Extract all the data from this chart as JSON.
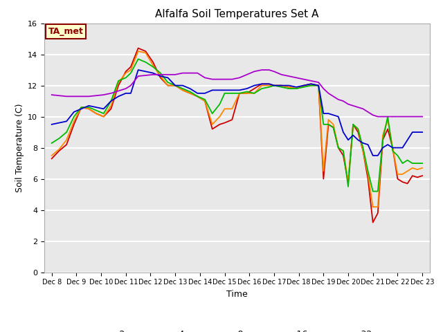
{
  "title": "Alfalfa Soil Temperatures Set A",
  "xlabel": "Time",
  "ylabel": "Soil Temperature (C)",
  "ylim": [
    0,
    16
  ],
  "yticks": [
    0,
    2,
    4,
    6,
    8,
    10,
    12,
    14,
    16
  ],
  "background_color": "#e8e8e8",
  "annotation_text": "TA_met",
  "annotation_bg": "#ffffcc",
  "annotation_border": "#8B0000",
  "x_labels": [
    "Dec 8",
    "Dec 9",
    "Dec 10",
    "Dec 11",
    "Dec 12",
    "Dec 13",
    "Dec 14",
    "Dec 15",
    "Dec 16",
    "Dec 17",
    "Dec 18",
    "Dec 19",
    "Dec 20",
    "Dec 21",
    "Dec 22",
    "Dec 23"
  ],
  "series": {
    "-2cm": {
      "color": "#cc0000",
      "lw": 1.3,
      "data_x": [
        0,
        0.3,
        0.6,
        0.9,
        1.2,
        1.5,
        1.8,
        2.1,
        2.4,
        2.7,
        3.0,
        3.2,
        3.5,
        3.8,
        4.1,
        4.4,
        4.7,
        5.0,
        5.3,
        5.6,
        5.9,
        6.2,
        6.5,
        6.8,
        7.0,
        7.3,
        7.6,
        7.9,
        8.2,
        8.5,
        8.8,
        9.0,
        9.3,
        9.6,
        9.9,
        10.2,
        10.5,
        10.8,
        11.0,
        11.2,
        11.4,
        11.6,
        11.8,
        12.0,
        12.2,
        12.4,
        12.6,
        12.8,
        13.0,
        13.2,
        13.4,
        13.6,
        13.8,
        14.0,
        14.2,
        14.4,
        14.6,
        14.8,
        15.0
      ],
      "data_y": [
        7.3,
        7.8,
        8.2,
        9.5,
        10.6,
        10.5,
        10.2,
        10.0,
        10.5,
        12.0,
        12.9,
        13.2,
        14.4,
        14.2,
        13.5,
        12.5,
        12.0,
        12.0,
        11.7,
        11.5,
        11.3,
        11.0,
        9.2,
        9.5,
        9.6,
        9.8,
        11.5,
        11.5,
        11.8,
        12.1,
        12.1,
        12.0,
        12.0,
        11.9,
        11.8,
        12.0,
        12.1,
        12.0,
        6.0,
        9.5,
        9.3,
        8.0,
        7.5,
        5.8,
        9.5,
        9.0,
        7.8,
        6.0,
        3.2,
        3.8,
        8.5,
        9.2,
        8.0,
        6.0,
        5.8,
        5.7,
        6.2,
        6.1,
        6.2
      ]
    },
    "-4cm": {
      "color": "#ff8800",
      "lw": 1.3,
      "data_x": [
        0,
        0.3,
        0.6,
        0.9,
        1.2,
        1.5,
        1.8,
        2.1,
        2.4,
        2.7,
        3.0,
        3.2,
        3.5,
        3.8,
        4.1,
        4.4,
        4.7,
        5.0,
        5.3,
        5.6,
        5.9,
        6.2,
        6.5,
        6.8,
        7.0,
        7.3,
        7.6,
        7.9,
        8.2,
        8.5,
        8.8,
        9.0,
        9.3,
        9.6,
        9.9,
        10.2,
        10.5,
        10.8,
        11.0,
        11.2,
        11.4,
        11.6,
        11.8,
        12.0,
        12.2,
        12.4,
        12.6,
        12.8,
        13.0,
        13.2,
        13.4,
        13.6,
        13.8,
        14.0,
        14.2,
        14.4,
        14.6,
        14.8,
        15.0
      ],
      "data_y": [
        7.5,
        7.9,
        8.5,
        9.7,
        10.6,
        10.5,
        10.2,
        10.0,
        10.7,
        12.2,
        12.8,
        13.0,
        14.2,
        14.1,
        13.3,
        12.6,
        12.0,
        12.0,
        11.7,
        11.5,
        11.3,
        11.0,
        9.5,
        10.0,
        10.5,
        10.5,
        11.5,
        11.5,
        11.5,
        12.0,
        12.0,
        12.0,
        12.0,
        11.9,
        11.8,
        12.0,
        12.0,
        12.0,
        6.5,
        9.8,
        9.5,
        8.0,
        7.8,
        5.8,
        9.5,
        9.2,
        7.8,
        6.3,
        4.2,
        4.2,
        8.8,
        9.8,
        8.0,
        6.3,
        6.3,
        6.5,
        6.7,
        6.6,
        6.7
      ]
    },
    "-8cm": {
      "color": "#00bb00",
      "lw": 1.3,
      "data_x": [
        0,
        0.3,
        0.6,
        0.9,
        1.2,
        1.5,
        1.8,
        2.1,
        2.4,
        2.7,
        3.0,
        3.2,
        3.5,
        3.8,
        4.1,
        4.4,
        4.7,
        5.0,
        5.3,
        5.6,
        5.9,
        6.2,
        6.5,
        6.8,
        7.0,
        7.3,
        7.6,
        7.9,
        8.2,
        8.5,
        8.8,
        9.0,
        9.3,
        9.6,
        9.9,
        10.2,
        10.5,
        10.8,
        11.0,
        11.2,
        11.4,
        11.6,
        11.8,
        12.0,
        12.2,
        12.4,
        12.6,
        12.8,
        13.0,
        13.2,
        13.4,
        13.6,
        13.8,
        14.0,
        14.2,
        14.4,
        14.6,
        14.8,
        15.0
      ],
      "data_y": [
        8.3,
        8.6,
        9.0,
        10.0,
        10.6,
        10.6,
        10.4,
        10.2,
        11.0,
        12.3,
        12.5,
        12.8,
        13.7,
        13.5,
        13.2,
        12.8,
        12.2,
        12.0,
        11.8,
        11.6,
        11.3,
        11.1,
        10.2,
        10.8,
        11.5,
        11.5,
        11.5,
        11.6,
        11.5,
        11.8,
        11.9,
        12.0,
        11.9,
        11.8,
        11.8,
        11.9,
        12.0,
        12.0,
        9.5,
        9.5,
        9.3,
        8.0,
        7.8,
        5.5,
        9.5,
        9.2,
        8.0,
        6.5,
        5.2,
        5.2,
        8.5,
        10.0,
        7.8,
        7.5,
        7.0,
        7.2,
        7.0,
        7.0,
        7.0
      ]
    },
    "-16cm": {
      "color": "#0000cc",
      "lw": 1.3,
      "data_x": [
        0,
        0.3,
        0.6,
        0.9,
        1.2,
        1.5,
        1.8,
        2.1,
        2.4,
        2.7,
        3.0,
        3.2,
        3.5,
        3.8,
        4.1,
        4.4,
        4.7,
        5.0,
        5.3,
        5.6,
        5.9,
        6.2,
        6.5,
        6.8,
        7.0,
        7.3,
        7.6,
        7.9,
        8.2,
        8.5,
        8.8,
        9.0,
        9.3,
        9.6,
        9.9,
        10.2,
        10.5,
        10.8,
        11.0,
        11.2,
        11.4,
        11.6,
        11.8,
        12.0,
        12.2,
        12.4,
        12.6,
        12.8,
        13.0,
        13.2,
        13.4,
        13.6,
        13.8,
        14.0,
        14.2,
        14.4,
        14.6,
        14.8,
        15.0
      ],
      "data_y": [
        9.5,
        9.6,
        9.7,
        10.3,
        10.5,
        10.7,
        10.6,
        10.5,
        11.0,
        11.3,
        11.5,
        11.5,
        13.0,
        12.9,
        12.8,
        12.6,
        12.5,
        12.0,
        12.0,
        11.8,
        11.5,
        11.5,
        11.7,
        11.7,
        11.7,
        11.7,
        11.7,
        11.8,
        12.0,
        12.1,
        12.1,
        12.0,
        12.0,
        12.0,
        11.9,
        12.0,
        12.1,
        12.0,
        10.2,
        10.2,
        10.1,
        10.0,
        9.0,
        8.5,
        8.8,
        8.5,
        8.3,
        8.2,
        7.5,
        7.5,
        8.0,
        8.2,
        8.0,
        8.0,
        8.0,
        8.5,
        9.0,
        9.0,
        9.0
      ]
    },
    "-32cm": {
      "color": "#aa00cc",
      "lw": 1.3,
      "data_x": [
        0,
        0.3,
        0.6,
        0.9,
        1.2,
        1.5,
        1.8,
        2.1,
        2.4,
        2.7,
        3.0,
        3.2,
        3.5,
        3.8,
        4.1,
        4.4,
        4.7,
        5.0,
        5.3,
        5.6,
        5.9,
        6.2,
        6.5,
        6.8,
        7.0,
        7.3,
        7.6,
        7.9,
        8.2,
        8.5,
        8.8,
        9.0,
        9.3,
        9.6,
        9.9,
        10.2,
        10.5,
        10.8,
        11.0,
        11.2,
        11.4,
        11.6,
        11.8,
        12.0,
        12.2,
        12.4,
        12.6,
        12.8,
        13.0,
        13.2,
        13.4,
        13.6,
        13.8,
        14.0,
        14.2,
        14.4,
        14.6,
        14.8,
        15.0
      ],
      "data_y": [
        11.4,
        11.35,
        11.3,
        11.3,
        11.3,
        11.3,
        11.35,
        11.4,
        11.5,
        11.65,
        11.8,
        12.0,
        12.6,
        12.65,
        12.7,
        12.7,
        12.7,
        12.7,
        12.8,
        12.8,
        12.8,
        12.5,
        12.4,
        12.4,
        12.4,
        12.4,
        12.5,
        12.7,
        12.9,
        13.0,
        13.0,
        12.9,
        12.7,
        12.6,
        12.5,
        12.4,
        12.3,
        12.2,
        11.8,
        11.5,
        11.3,
        11.1,
        11.0,
        10.8,
        10.7,
        10.6,
        10.5,
        10.3,
        10.1,
        10.0,
        10.0,
        10.0,
        10.0,
        10.0,
        10.0,
        10.0,
        10.0,
        10.0,
        10.0
      ]
    }
  }
}
